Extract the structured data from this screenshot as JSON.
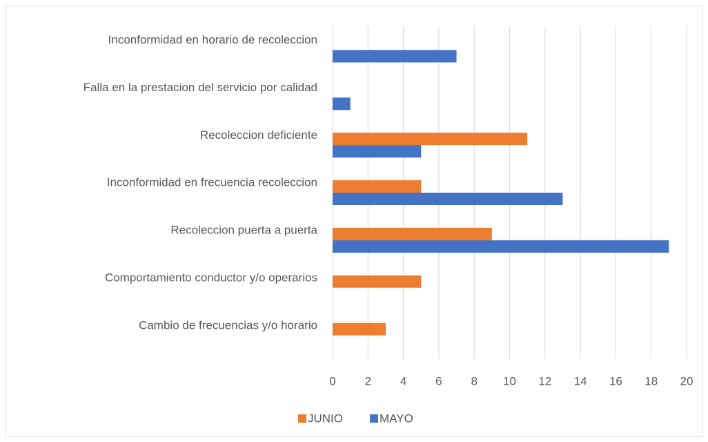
{
  "chart_data": {
    "type": "hbar",
    "categories": [
      "Inconformidad en horario de recoleccion",
      "Falla en la prestacion del servicio por calidad",
      "Recoleccion deficiente",
      "Inconformidad en frecuencia recoleccion",
      "Recoleccion puerta a puerta",
      "Comportamiento conductor y/o operarios",
      "Cambio de frecuencias y/o horario"
    ],
    "series": [
      {
        "name": "JUNIO",
        "color": "#ed7d31",
        "values": [
          null,
          null,
          11,
          5,
          9,
          5,
          3
        ]
      },
      {
        "name": "MAYO",
        "color": "#4472c4",
        "values": [
          7,
          1,
          5,
          13,
          19,
          null,
          null
        ]
      }
    ],
    "xlim": [
      0,
      20
    ],
    "xticks": [
      0,
      2,
      4,
      6,
      8,
      10,
      12,
      14,
      16,
      18,
      20
    ],
    "grid": true,
    "legend": "bottom"
  }
}
